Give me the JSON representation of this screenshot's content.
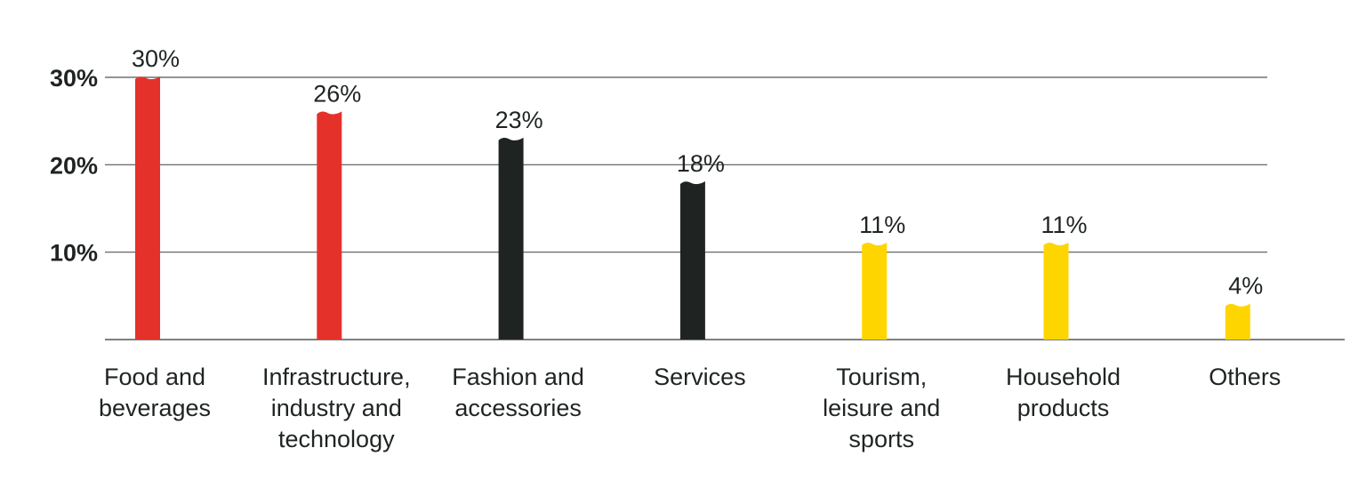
{
  "chart_data": {
    "type": "bar",
    "title": "",
    "xlabel": "",
    "ylabel": "",
    "ylim": [
      0,
      30
    ],
    "y_ticks": [
      {
        "value": 10,
        "label": "10%"
      },
      {
        "value": 20,
        "label": "20%"
      },
      {
        "value": 30,
        "label": "30%"
      }
    ],
    "grid": true,
    "legend": "none",
    "categories": [
      {
        "label_lines": [
          "Food and",
          "beverages"
        ]
      },
      {
        "label_lines": [
          "Infrastructure,",
          "industry and",
          "technology"
        ]
      },
      {
        "label_lines": [
          "Fashion and",
          "accessories"
        ]
      },
      {
        "label_lines": [
          "Services"
        ]
      },
      {
        "label_lines": [
          "Tourism,",
          "leisure and",
          "sports"
        ]
      },
      {
        "label_lines": [
          "Household",
          "products"
        ]
      },
      {
        "label_lines": [
          "Others"
        ]
      }
    ],
    "values": [
      30,
      26,
      23,
      18,
      11,
      11,
      4
    ],
    "data_labels": [
      "30%",
      "26%",
      "23%",
      "18%",
      "11%",
      "11%",
      "4%"
    ],
    "bar_colors": [
      "#e4322b",
      "#e4322b",
      "#1f2422",
      "#1f2422",
      "#ffd500",
      "#ffd500",
      "#ffd500"
    ],
    "colors": {
      "grid": "#555555",
      "text": "#1f2422"
    }
  }
}
